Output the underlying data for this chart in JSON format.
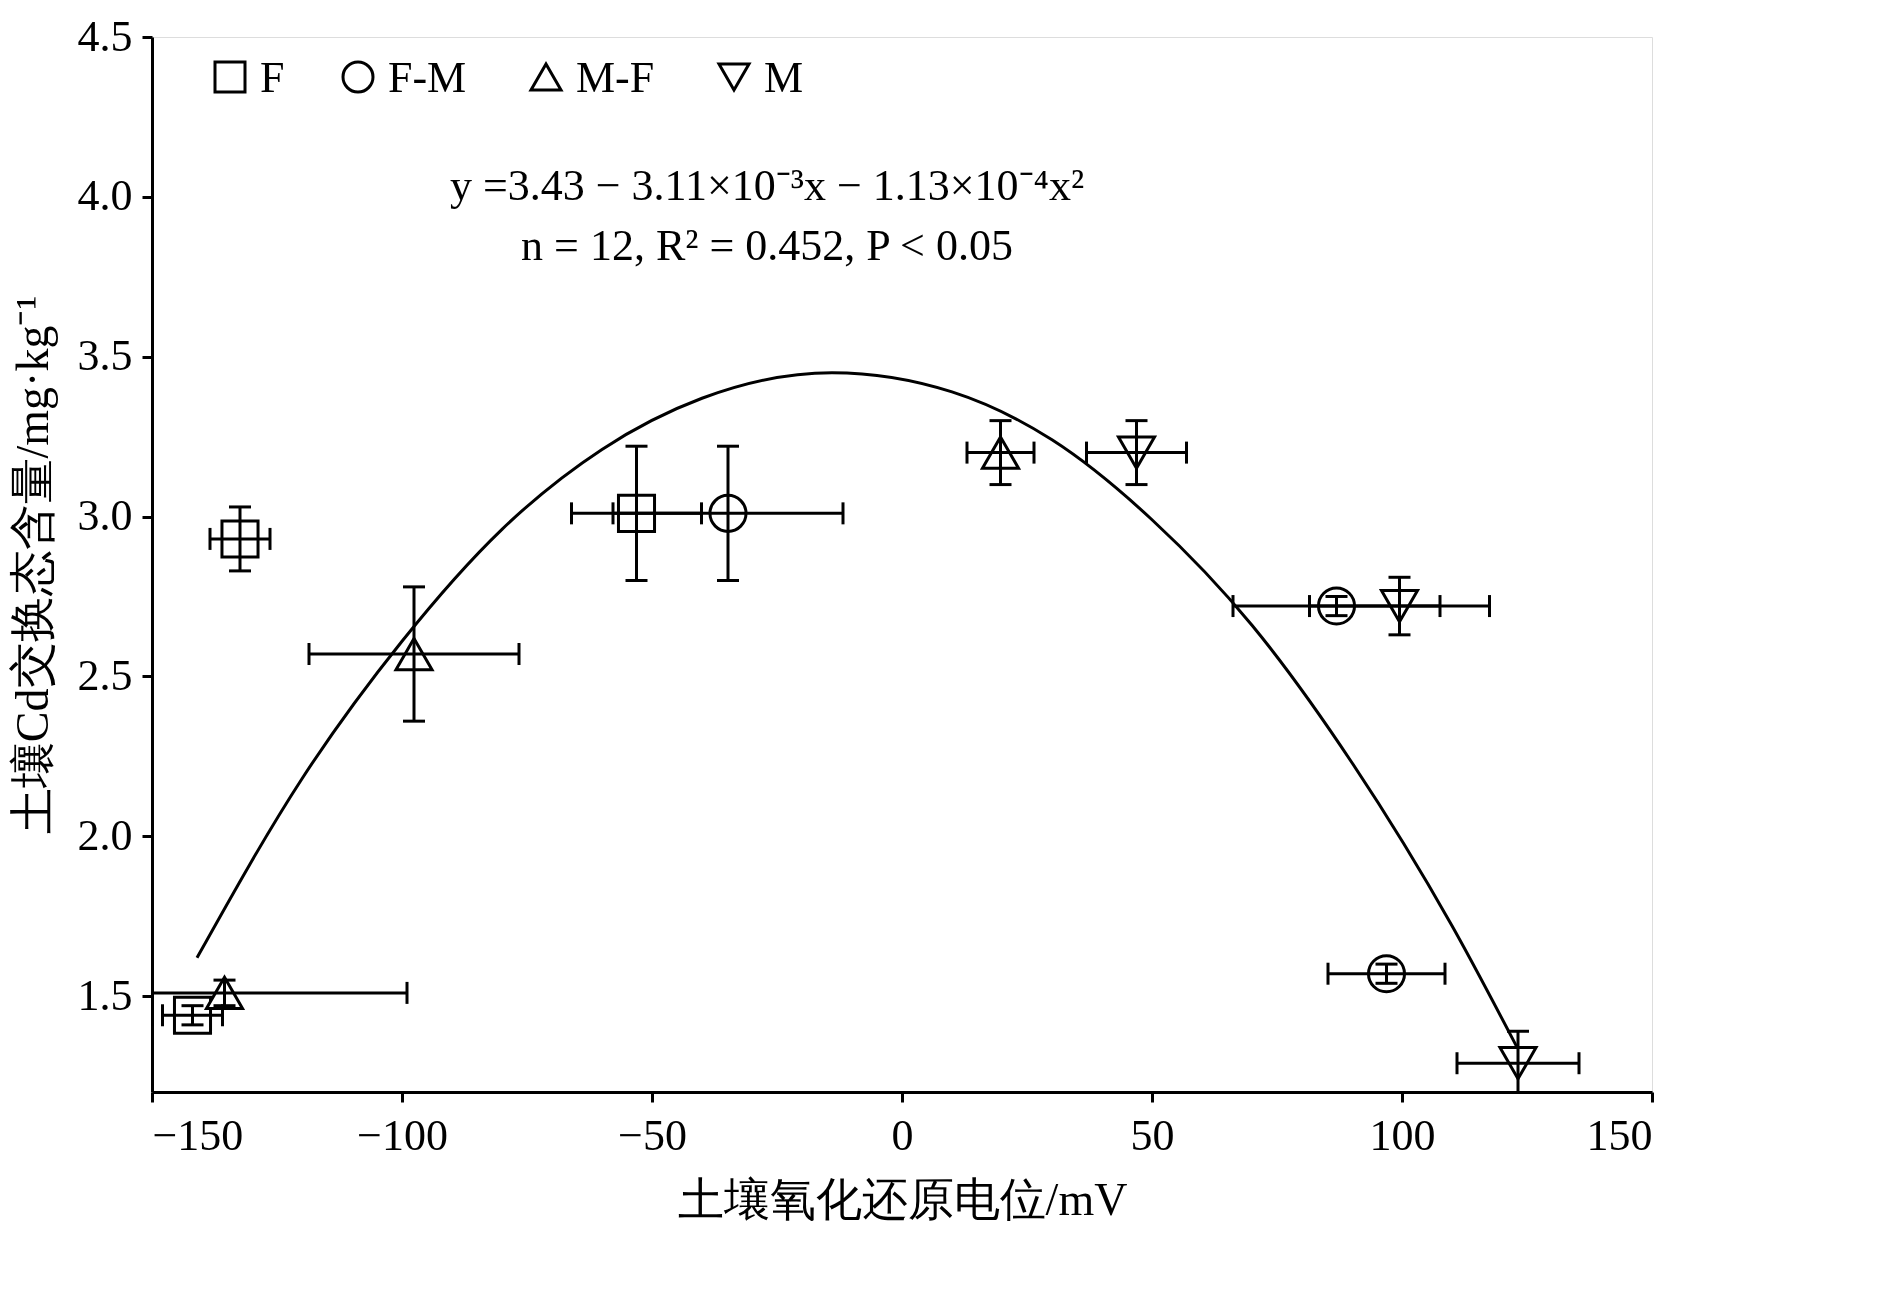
{
  "chart_data": {
    "type": "scatter",
    "xlabel": "土壤氧化还原电位/mV",
    "ylabel": "土壤Cd交换态含量/mg·kg⁻¹",
    "xlim": [
      -150,
      150
    ],
    "ylim": [
      1.2,
      4.5
    ],
    "xticks": [
      {
        "value": -150,
        "label": "−150"
      },
      {
        "value": -100,
        "label": "−100"
      },
      {
        "value": -50,
        "label": "−50"
      },
      0,
      50,
      100,
      150
    ],
    "yticks": [
      {
        "value": 1.5,
        "label": "1.5"
      },
      {
        "value": 2.0,
        "label": "2.0"
      },
      {
        "value": 2.5,
        "label": "2.5"
      },
      {
        "value": 3.0,
        "label": "3.0"
      },
      {
        "value": 3.5,
        "label": "3.5"
      },
      {
        "value": 4.0,
        "label": "4.0"
      },
      {
        "value": 4.5,
        "label": "4.5"
      }
    ],
    "grid": false,
    "legend": "top left",
    "annotations": [
      "y =3.43 − 3.11×10⁻³x − 1.13×10⁻⁴x²",
      "n = 12, R² = 0.452, P < 0.05"
    ],
    "series": [
      {
        "name": "F",
        "color": "#000000",
        "marker": "square",
        "x": [
          -132.4,
          -53.1,
          -141.9
        ],
        "values": [
          2.93,
          3.01,
          1.44
        ],
        "errors": [
          0.1,
          0.21,
          0.03
        ],
        "xerrors": [
          6,
          13,
          6
        ]
      },
      {
        "name": "F-M",
        "color": "#000000",
        "marker": "circle",
        "x": [
          -34.8,
          86.9,
          96.9
        ],
        "values": [
          3.01,
          2.72,
          1.57
        ],
        "errors": [
          0.21,
          0.03,
          0.03
        ],
        "xerrors": [
          23,
          20.7,
          11.7
        ]
      },
      {
        "name": "M-F",
        "color": "#000000",
        "marker": "triangle",
        "x": [
          -97.6,
          -135.5,
          19.7
        ],
        "values": [
          2.57,
          1.51,
          3.2
        ],
        "errors": [
          0.21,
          0.04,
          0.1
        ],
        "xerrors": [
          21,
          [
            -150,
            -99
          ],
          6.7
        ]
      },
      {
        "name": "M",
        "color": "#000000",
        "marker": "triangle-down",
        "x": [
          46.9,
          99.5,
          123.2
        ],
        "values": [
          3.2,
          2.72,
          1.29
        ],
        "errors": [
          0.1,
          0.09,
          0.1
        ],
        "xerrors": [
          10,
          18,
          12.2
        ]
      },
      {
        "type": "line",
        "color": "#000000",
        "marker": "none",
        "line_style": "solid",
        "x": [
          -141,
          -120,
          -100,
          -80,
          -60,
          -40,
          -14,
          10,
          30,
          50,
          70,
          90,
          110,
          123
        ],
        "values": [
          1.62,
          2.18,
          2.61,
          2.96,
          3.21,
          3.37,
          3.45,
          3.39,
          3.24,
          2.99,
          2.66,
          2.23,
          1.72,
          1.34
        ]
      }
    ]
  }
}
